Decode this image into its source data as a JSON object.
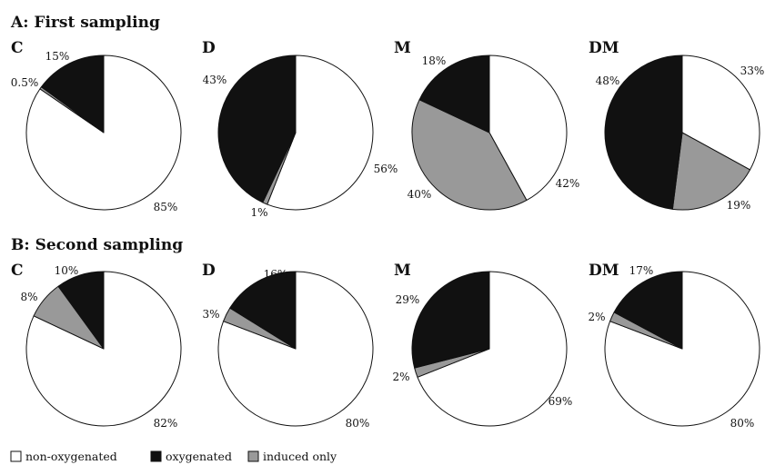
{
  "sections": [
    "A: First sampling",
    "B: Second sampling"
  ],
  "legend": [
    {
      "label": "non-oxygenated",
      "color": "#ffffff"
    },
    {
      "label": "oxygenated",
      "color": "#111111"
    },
    {
      "label": "induced only",
      "color": "#999999"
    }
  ],
  "colors": {
    "non-oxygenated": "#ffffff",
    "oxygenated": "#111111",
    "induced only": "#999999"
  },
  "chart_data": [
    {
      "type": "pie",
      "group": "A: First sampling",
      "title": "C",
      "slices": [
        {
          "category": "non-oxygenated",
          "value": 85,
          "label": "85%"
        },
        {
          "category": "induced only",
          "value": 0.5,
          "label": "0.5%"
        },
        {
          "category": "oxygenated",
          "value": 15,
          "label": "15%"
        }
      ]
    },
    {
      "type": "pie",
      "group": "A: First sampling",
      "title": "D",
      "slices": [
        {
          "category": "non-oxygenated",
          "value": 56,
          "label": "56%"
        },
        {
          "category": "induced only",
          "value": 1,
          "label": "1%"
        },
        {
          "category": "oxygenated",
          "value": 43,
          "label": "43%"
        }
      ]
    },
    {
      "type": "pie",
      "group": "A: First sampling",
      "title": "M",
      "slices": [
        {
          "category": "non-oxygenated",
          "value": 42,
          "label": "42%"
        },
        {
          "category": "induced only",
          "value": 40,
          "label": "40%"
        },
        {
          "category": "oxygenated",
          "value": 18,
          "label": "18%"
        }
      ]
    },
    {
      "type": "pie",
      "group": "A: First sampling",
      "title": "DM",
      "slices": [
        {
          "category": "non-oxygenated",
          "value": 33,
          "label": "33%"
        },
        {
          "category": "induced only",
          "value": 19,
          "label": "19%"
        },
        {
          "category": "oxygenated",
          "value": 48,
          "label": "48%"
        }
      ]
    },
    {
      "type": "pie",
      "group": "B: Second sampling",
      "title": "C",
      "slices": [
        {
          "category": "non-oxygenated",
          "value": 82,
          "label": "82%"
        },
        {
          "category": "induced only",
          "value": 8,
          "label": "8%"
        },
        {
          "category": "oxygenated",
          "value": 10,
          "label": "10%"
        }
      ]
    },
    {
      "type": "pie",
      "group": "B: Second sampling",
      "title": "D",
      "slices": [
        {
          "category": "non-oxygenated",
          "value": 80,
          "label": "80%"
        },
        {
          "category": "induced only",
          "value": 3,
          "label": "3%"
        },
        {
          "category": "oxygenated",
          "value": 16,
          "label": "16%"
        }
      ]
    },
    {
      "type": "pie",
      "group": "B: Second sampling",
      "title": "M",
      "slices": [
        {
          "category": "non-oxygenated",
          "value": 69,
          "label": "69%"
        },
        {
          "category": "induced only",
          "value": 2,
          "label": "2%"
        },
        {
          "category": "oxygenated",
          "value": 29,
          "label": "29%"
        }
      ]
    },
    {
      "type": "pie",
      "group": "B: Second sampling",
      "title": "DM",
      "slices": [
        {
          "category": "non-oxygenated",
          "value": 80,
          "label": "80%"
        },
        {
          "category": "induced only",
          "value": 2,
          "label": "2%"
        },
        {
          "category": "oxygenated",
          "value": 17,
          "label": "17%"
        }
      ]
    }
  ]
}
